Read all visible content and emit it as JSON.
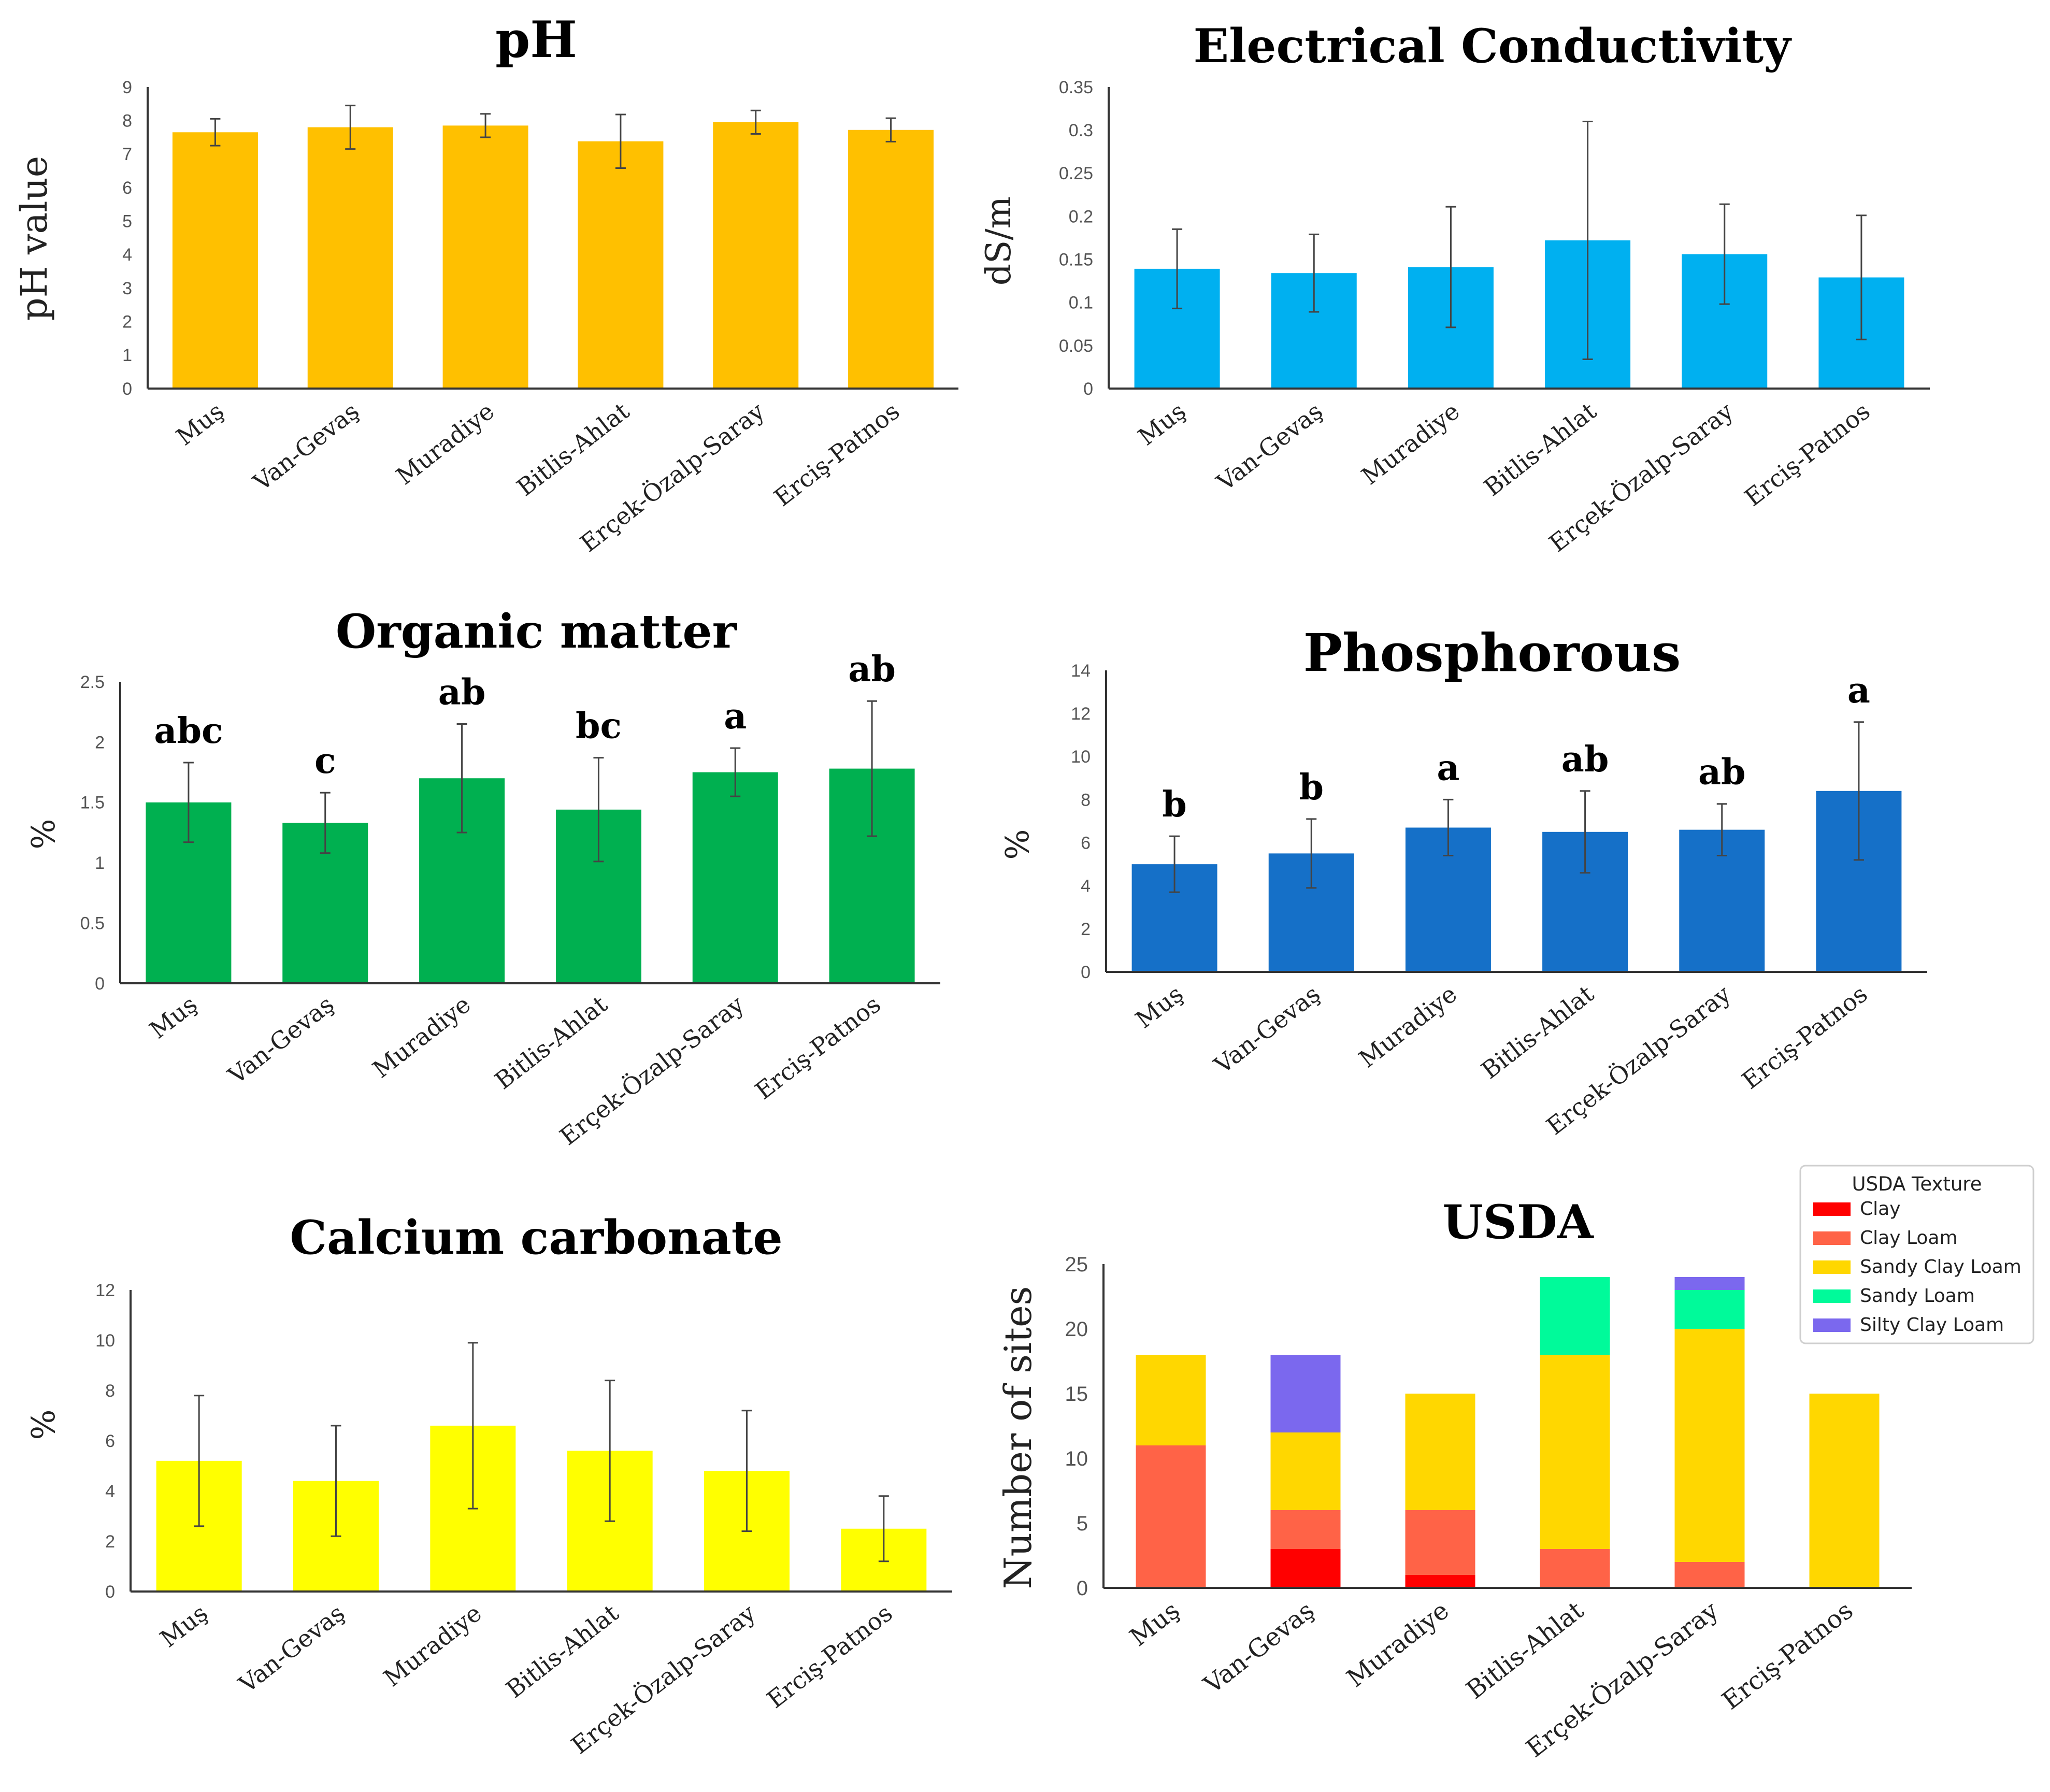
{
  "chart_data": [
    {
      "id": "ph",
      "type": "bar",
      "title": "pH",
      "ylabel": "pH value",
      "xlabel": "",
      "ylim": [
        0,
        9
      ],
      "yticks": [
        "0",
        "1",
        "2",
        "3",
        "4",
        "5",
        "6",
        "7",
        "8",
        "9"
      ],
      "categories": [
        "Muş",
        "Van-Gevaş",
        "Muradiye",
        "Bitlis-Ahlat",
        "Erçek-Özalp-Saray",
        "Erciş-Patnos"
      ],
      "values": [
        7.65,
        7.8,
        7.85,
        7.38,
        7.95,
        7.72
      ],
      "errors": [
        0.4,
        0.65,
        0.35,
        0.8,
        0.35,
        0.35
      ],
      "color": "#FFC000"
    },
    {
      "id": "ec",
      "type": "bar",
      "title": "Electrical Conductivity",
      "ylabel": "dS/m",
      "xlabel": "",
      "ylim": [
        0,
        0.35
      ],
      "yticks": [
        "0",
        "0.05",
        "0.1",
        "0.15",
        "0.2",
        "0.25",
        "0.3",
        "0.35"
      ],
      "categories": [
        "Muş",
        "Van-Gevaş",
        "Muradiye",
        "Bitlis-Ahlat",
        "Erçek-Özalp-Saray",
        "Erciş-Patnos"
      ],
      "values": [
        0.139,
        0.134,
        0.141,
        0.172,
        0.156,
        0.129
      ],
      "errors": [
        0.046,
        0.045,
        0.07,
        0.138,
        0.058,
        0.072
      ],
      "color": "#00B0F0"
    },
    {
      "id": "om",
      "type": "bar",
      "title": "Organic matter",
      "ylabel": "%",
      "xlabel": "",
      "ylim": [
        0,
        2.5
      ],
      "yticks": [
        "0",
        "0.5",
        "1",
        "1.5",
        "2",
        "2.5"
      ],
      "categories": [
        "Muş",
        "Van-Gevaş",
        "Muradiye",
        "Bitlis-Ahlat",
        "Erçek-Özalp-Saray",
        "Erciş-Patnos"
      ],
      "values": [
        1.5,
        1.33,
        1.7,
        1.44,
        1.75,
        1.78
      ],
      "errors": [
        0.33,
        0.25,
        0.45,
        0.43,
        0.2,
        0.56
      ],
      "letters": [
        "abc",
        "c",
        "ab",
        "bc",
        "a",
        "ab"
      ],
      "color": "#00B050"
    },
    {
      "id": "p",
      "type": "bar",
      "title": "Phosphorous",
      "ylabel": "%",
      "xlabel": "",
      "ylim": [
        0,
        14
      ],
      "yticks": [
        "0",
        "2",
        "4",
        "6",
        "8",
        "10",
        "12",
        "14"
      ],
      "categories": [
        "Muş",
        "Van-Gevaş",
        "Muradiye",
        "Bitlis-Ahlat",
        "Erçek-Özalp-Saray",
        "Erciş-Patnos"
      ],
      "values": [
        5.0,
        5.5,
        6.7,
        6.5,
        6.6,
        8.4
      ],
      "errors": [
        1.3,
        1.6,
        1.3,
        1.9,
        1.2,
        3.2
      ],
      "letters": [
        "b",
        "b",
        "a",
        "ab",
        "ab",
        "a"
      ],
      "color": "#1570C8"
    },
    {
      "id": "caco3",
      "type": "bar",
      "title": "Calcium carbonate",
      "ylabel": "%",
      "xlabel": "",
      "ylim": [
        0,
        12
      ],
      "yticks": [
        "0",
        "2",
        "4",
        "6",
        "8",
        "10",
        "12"
      ],
      "categories": [
        "Muş",
        "Van-Gevaş",
        "Muradiye",
        "Bitlis-Ahlat",
        "Erçek-Özalp-Saray",
        "Erciş-Patnos"
      ],
      "values": [
        5.2,
        4.4,
        6.6,
        5.6,
        4.8,
        2.5
      ],
      "errors": [
        2.6,
        2.2,
        3.3,
        2.8,
        2.4,
        1.3
      ],
      "color": "#FFFF00"
    },
    {
      "id": "usda",
      "type": "stacked-bar",
      "title": "USDA",
      "ylabel": "Number of sites",
      "xlabel": "",
      "ylim": [
        0,
        25
      ],
      "yticks": [
        "0",
        "5",
        "10",
        "15",
        "20",
        "25"
      ],
      "categories": [
        "Muş",
        "Van-Gevaş",
        "Muradiye",
        "Bitlis-Ahlat",
        "Erçek-Özalp-Saray",
        "Erciş-Patnos"
      ],
      "legend_title": "USDA Texture",
      "legend_position": "top-right",
      "series": [
        {
          "name": "Clay",
          "color": "#FF0000",
          "values": [
            0,
            3,
            1,
            0,
            0,
            0
          ]
        },
        {
          "name": "Clay Loam",
          "color": "#FF6347",
          "values": [
            11,
            3,
            5,
            3,
            2,
            0
          ]
        },
        {
          "name": "Sandy Clay Loam",
          "color": "#FFD700",
          "values": [
            7,
            6,
            9,
            15,
            18,
            15
          ]
        },
        {
          "name": "Sandy Loam",
          "color": "#00FA9A",
          "values": [
            0,
            0,
            0,
            6,
            3,
            0
          ]
        },
        {
          "name": "Silty Clay Loam",
          "color": "#7B68EE",
          "values": [
            0,
            6,
            0,
            0,
            1,
            0
          ]
        }
      ]
    }
  ]
}
